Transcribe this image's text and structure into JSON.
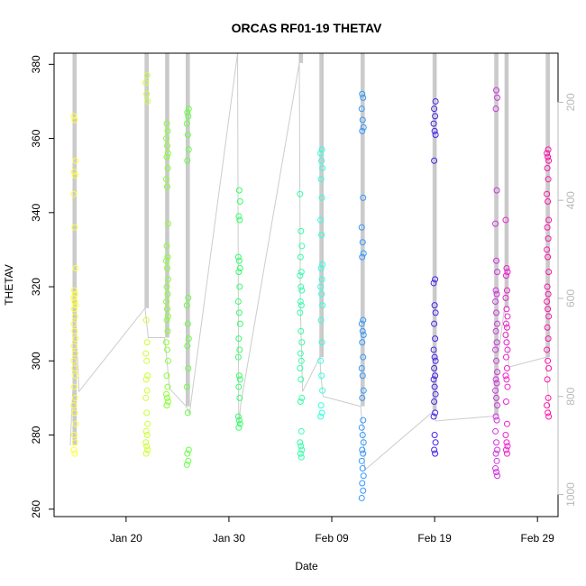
{
  "chart_data": {
    "type": "scatter",
    "title": "ORCAS RF01-19 THETAV",
    "xlabel": "Date",
    "ylabel": "THETAV",
    "xlim": [
      "2016-01-13",
      "2016-03-02"
    ],
    "ylim": [
      258,
      383
    ],
    "x_ticks": [
      "Jan 20",
      "Jan 30",
      "Feb 09",
      "Feb 19",
      "Feb 29"
    ],
    "x_tick_dates": [
      "2016-01-20",
      "2016-01-30",
      "2016-02-09",
      "2016-02-19",
      "2016-02-29"
    ],
    "y_ticks": [
      260,
      280,
      300,
      320,
      340,
      360,
      380
    ],
    "right_axis": {
      "label": "",
      "ticks": [
        200,
        400,
        600,
        800,
        1000
      ],
      "range_top": 100,
      "range_bottom": 1045,
      "color": "#b8b8b8"
    },
    "grid": false,
    "legend": "none",
    "flight_line_color": "#c8c8c8",
    "flights": [
      {
        "date": "2016-01-15",
        "color": "#ffff33",
        "values": [
          366,
          365,
          354,
          351,
          350,
          345,
          336,
          325,
          319,
          318,
          317,
          316,
          315,
          314,
          312,
          310,
          308,
          306,
          304,
          302,
          300,
          298,
          296,
          293,
          290,
          288,
          286,
          283,
          280,
          278,
          276,
          275
        ],
        "pressure": [
          900,
          845,
          800,
          760,
          720,
          640,
          700,
          740,
          790
        ]
      },
      {
        "date": "2016-01-22",
        "color": "#ccff33",
        "values": [
          377,
          375,
          372,
          370,
          311,
          305,
          302,
          300,
          296,
          295,
          292,
          290,
          286,
          283,
          281,
          280,
          278,
          277,
          276,
          275
        ],
        "pressure": [
          620,
          640,
          660,
          680
        ]
      },
      {
        "date": "2016-01-24",
        "color": "#88ff33",
        "values": [
          364,
          362,
          360,
          358,
          356,
          355,
          352,
          349,
          347,
          337,
          331,
          328,
          327,
          325,
          322,
          320,
          318,
          316,
          314,
          312,
          311,
          308,
          305,
          303,
          300,
          296,
          293,
          291,
          290,
          289,
          288
        ],
        "pressure": [
          680,
          700,
          720,
          745,
          770,
          785
        ]
      },
      {
        "date": "2016-01-26",
        "color": "#66ff44",
        "values": [
          368,
          367,
          366,
          364,
          361,
          357,
          354,
          317,
          315,
          310,
          306,
          304,
          298,
          293,
          286,
          276,
          275,
          273,
          272
        ],
        "pressure": [
          820,
          825,
          830,
          835
        ]
      },
      {
        "date": "2016-01-31",
        "color": "#33ff66",
        "values": [
          346,
          343,
          339,
          338,
          328,
          327,
          325,
          324,
          320,
          316,
          313,
          310,
          306,
          303,
          301,
          296,
          295,
          293,
          290,
          285,
          284,
          283,
          282
        ],
        "pressure": [
          100,
          860,
          835,
          815
        ]
      },
      {
        "date": "2016-02-06",
        "color": "#33ffaa",
        "values": [
          345,
          335,
          331,
          328,
          324,
          323,
          320,
          319,
          316,
          315,
          313,
          308,
          305,
          302,
          300,
          298,
          295,
          290,
          289,
          281,
          278,
          277,
          276,
          275,
          274
        ],
        "pressure": [
          120,
          620,
          700,
          790
        ]
      },
      {
        "date": "2016-02-08",
        "color": "#33ffdd",
        "values": [
          357,
          356,
          354,
          352,
          349,
          344,
          338,
          334,
          326,
          325,
          322,
          320,
          318,
          315,
          311,
          305,
          300,
          296,
          292,
          288,
          286,
          285
        ],
        "pressure": [
          720,
          760,
          780,
          800
        ]
      },
      {
        "date": "2016-02-12",
        "color": "#3399ff",
        "values": [
          372,
          371,
          368,
          365,
          363,
          362,
          344,
          336,
          332,
          329,
          328,
          311,
          310,
          308,
          307,
          305,
          301,
          298,
          296,
          292,
          290,
          284,
          282,
          280,
          278,
          276,
          275,
          273,
          271,
          269,
          267,
          265,
          263
        ],
        "pressure": [
          820,
          840,
          860,
          900,
          950
        ]
      },
      {
        "date": "2016-02-19",
        "color": "#4422ee",
        "values": [
          370,
          368,
          366,
          364,
          362,
          361,
          354,
          322,
          321,
          315,
          313,
          310,
          306,
          303,
          301,
          300,
          298,
          296,
          295,
          293,
          291,
          289,
          286,
          285,
          280,
          278,
          276,
          275
        ],
        "pressure": [
          830,
          840,
          850
        ]
      },
      {
        "date": "2016-02-25",
        "color": "#cc33dd",
        "values": [
          373,
          371,
          368,
          346,
          337,
          327,
          324,
          319,
          318,
          316,
          313,
          310,
          308,
          305,
          303,
          300,
          297,
          295,
          294,
          292,
          290,
          288,
          285,
          284,
          281,
          278,
          276,
          275,
          273,
          271,
          270,
          269
        ],
        "pressure": [
          840,
          790,
          770,
          720
        ]
      },
      {
        "date": "2016-02-26",
        "color": "#ee22cc",
        "values": [
          338,
          325,
          324,
          323,
          319,
          317,
          314,
          312,
          310,
          309,
          307,
          305,
          303,
          301,
          298,
          296,
          295,
          293,
          289,
          283,
          280,
          278,
          277,
          276,
          275
        ],
        "pressure": [
          620,
          640,
          660,
          700,
          740
        ]
      },
      {
        "date": "2016-03-01",
        "color": "#ff11aa",
        "values": [
          357,
          356,
          355,
          354,
          352,
          349,
          345,
          343,
          338,
          336,
          333,
          330,
          328,
          324,
          320,
          318,
          316,
          314,
          312,
          309,
          306,
          303,
          300,
          298,
          295,
          290,
          288,
          286,
          285
        ],
        "pressure": [
          720,
          760,
          800,
          830
        ]
      }
    ]
  }
}
